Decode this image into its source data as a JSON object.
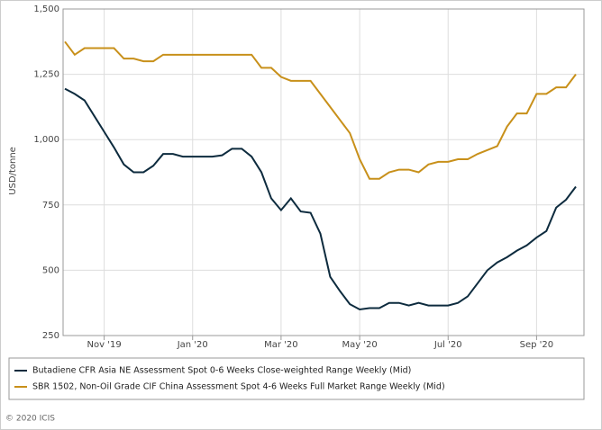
{
  "chart_data": {
    "type": "line",
    "ylabel": "USD/tonne",
    "footer": "© 2020 ICIS",
    "categories": [
      null,
      null,
      null,
      null,
      "Nov '19",
      null,
      null,
      null,
      null,
      null,
      null,
      null,
      null,
      "Jan '20",
      null,
      null,
      null,
      null,
      null,
      null,
      null,
      null,
      "Mar '20",
      null,
      null,
      null,
      null,
      null,
      null,
      null,
      "May '20",
      null,
      null,
      null,
      null,
      null,
      null,
      null,
      null,
      "Jul '20",
      null,
      null,
      null,
      null,
      null,
      null,
      null,
      null,
      "Sep '20",
      null,
      null,
      null,
      null
    ],
    "series": [
      {
        "name": "Butadiene CFR Asia NE Assessment Spot 0-6 Weeks Close-weighted Range Weekly (Mid)",
        "color": "#0d2b3e",
        "values": [
          1195,
          1175,
          1150,
          1090,
          1030,
          970,
          905,
          875,
          875,
          900,
          945,
          945,
          935,
          935,
          935,
          935,
          940,
          965,
          965,
          935,
          875,
          775,
          730,
          775,
          725,
          720,
          640,
          475,
          420,
          370,
          350,
          355,
          355,
          375,
          375,
          365,
          375,
          365,
          365,
          365,
          375,
          400,
          450,
          500,
          530,
          550,
          575,
          595,
          625,
          650,
          740,
          770,
          820
        ]
      },
      {
        "name": "SBR 1502, Non-Oil Grade CIF China Assessment Spot 4-6 Weeks Full Market Range Weekly (Mid)",
        "color": "#c8901a",
        "values": [
          1375,
          1325,
          1350,
          1350,
          1350,
          1350,
          1310,
          1310,
          1300,
          1300,
          1325,
          1325,
          1325,
          1325,
          1325,
          1325,
          1325,
          1325,
          1325,
          1325,
          1275,
          1275,
          1240,
          1225,
          1225,
          1225,
          1175,
          1125,
          1075,
          1025,
          925,
          850,
          850,
          875,
          885,
          885,
          875,
          905,
          915,
          915,
          925,
          925,
          945,
          960,
          975,
          1050,
          1100,
          1100,
          1175,
          1175,
          1200,
          1200,
          1250
        ]
      }
    ],
    "ylim": [
      250,
      1500
    ],
    "yticks": [
      250,
      500,
      750,
      {
        "value": 1000,
        "label": "1,000"
      },
      {
        "value": 1250,
        "label": "1,250"
      },
      {
        "value": 1500,
        "label": "1,500"
      }
    ],
    "grid": true
  }
}
